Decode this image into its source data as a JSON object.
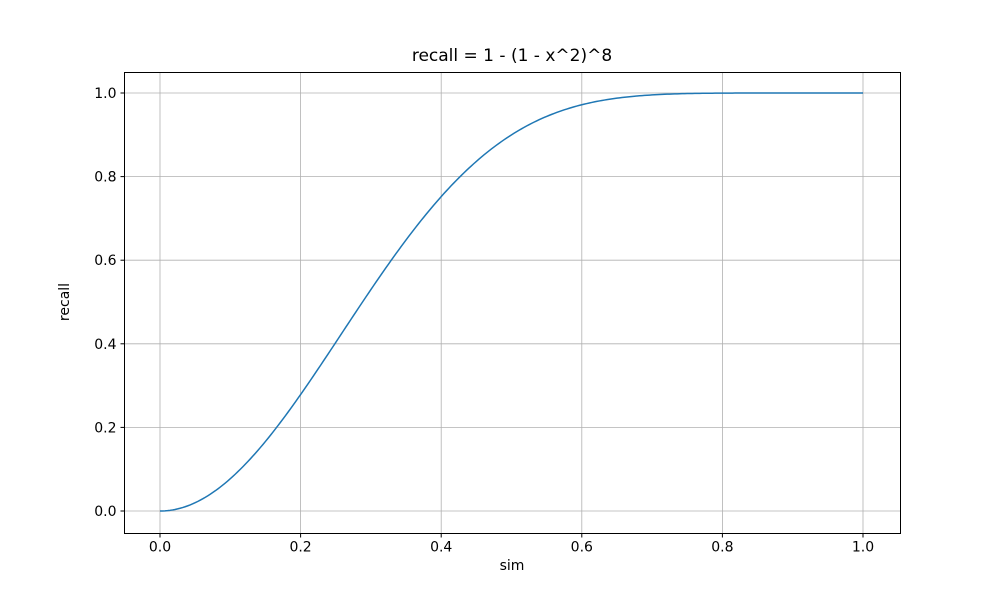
{
  "chart_data": {
    "type": "line",
    "title": "recall = 1 - (1 - x^2)^8",
    "xlabel": "sim",
    "ylabel": "recall",
    "xlim": [
      -0.05,
      1.05
    ],
    "ylim": [
      -0.05,
      1.05
    ],
    "x_ticks": [
      0.0,
      0.2,
      0.4,
      0.6,
      0.8,
      1.0
    ],
    "y_ticks": [
      0.0,
      0.2,
      0.4,
      0.6,
      0.8,
      1.0
    ],
    "x_tick_labels": [
      "0.0",
      "0.2",
      "0.4",
      "0.6",
      "0.8",
      "1.0"
    ],
    "y_tick_labels": [
      "0.0",
      "0.2",
      "0.4",
      "0.6",
      "0.8",
      "1.0"
    ],
    "grid": true,
    "grid_color": "#b0b0b0",
    "spine_color": "#000000",
    "background_color": "#ffffff",
    "legend": false,
    "series": [
      {
        "name": "recall",
        "formula": "1 - (1 - x^2)^8",
        "exponent": 8,
        "color": "#1f77b4",
        "line_width": 1.5,
        "x": [
          0.0,
          0.05,
          0.1,
          0.15,
          0.2,
          0.25,
          0.3,
          0.35,
          0.4,
          0.45,
          0.5,
          0.55,
          0.6,
          0.65,
          0.7,
          0.75,
          0.8,
          0.85,
          0.9,
          0.95,
          1.0
        ],
        "y": [
          0.0,
          0.0198,
          0.0773,
          0.1664,
          0.2786,
          0.4033,
          0.5298,
          0.6485,
          0.7521,
          0.8364,
          0.8999,
          0.944,
          0.9718,
          0.9876,
          0.9954,
          0.9987,
          0.9997,
          1.0,
          1.0,
          1.0,
          1.0
        ]
      }
    ]
  }
}
